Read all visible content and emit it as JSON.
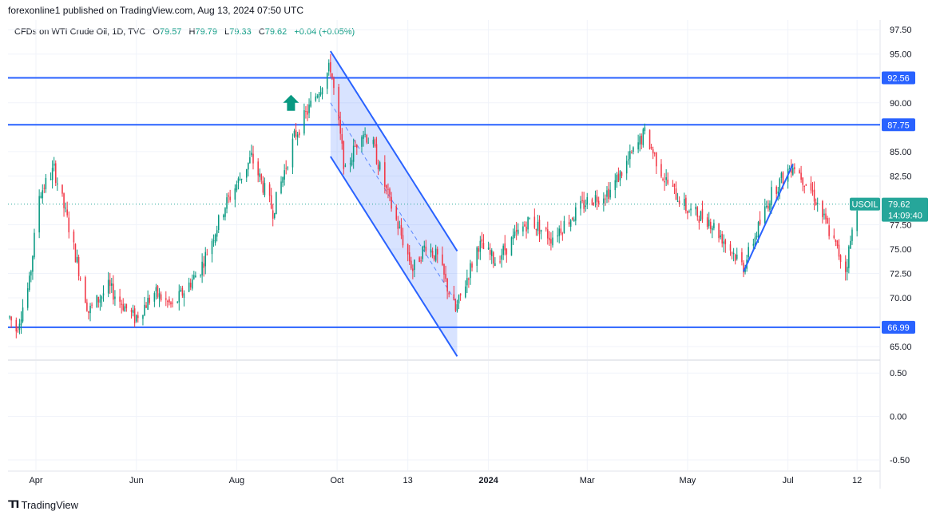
{
  "header": {
    "publisher": "forexonline1 published on TradingView.com, Aug 13, 2024 07:50 UTC",
    "symbol_title": "CFDs on WTI Crude Oil, 1D, TVC",
    "ohlc": [
      {
        "key": "O",
        "value": "79.57"
      },
      {
        "key": "H",
        "value": "79.79"
      },
      {
        "key": "L",
        "value": "79.33"
      },
      {
        "key": "C",
        "value": "79.62"
      }
    ],
    "change": "+0.04 (+0.05%)"
  },
  "colors": {
    "up": "#089981",
    "down": "#f23645",
    "level_line": "#2962ff",
    "channel_fill": "#2962ff",
    "price_tag": "#26a69a",
    "arrow": "#089981"
  },
  "icons": {
    "arrow": "up-arrow-icon",
    "footer_logo": "tradingview-logo-icon"
  },
  "chart_data": {
    "type": "candlestick",
    "symbol": "USOIL",
    "interval": "1D",
    "y_axis": {
      "ticks": [
        "97.50",
        "95.00",
        "90.00",
        "85.00",
        "82.50",
        "77.50",
        "75.00",
        "72.50",
        "70.00",
        "65.00"
      ],
      "range": [
        63.7,
        98.5
      ]
    },
    "x_axis": {
      "labels": [
        {
          "text": "Apr",
          "date": "2023-04-01"
        },
        {
          "text": "Jun",
          "date": "2023-06-01"
        },
        {
          "text": "Aug",
          "date": "2023-08-01"
        },
        {
          "text": "Oct",
          "date": "2023-10-01"
        },
        {
          "text": "13",
          "date": "2023-11-13"
        },
        {
          "text": "2024",
          "date": "2024-01-01"
        },
        {
          "text": "Mar",
          "date": "2024-03-01"
        },
        {
          "text": "May",
          "date": "2024-05-01"
        },
        {
          "text": "Jul",
          "date": "2024-07-01"
        },
        {
          "text": "12",
          "date": "2024-08-12"
        }
      ],
      "range": [
        "2023-03-15",
        "2024-08-26"
      ]
    },
    "price_path": [
      [
        "2023-03-16",
        68.0
      ],
      [
        "2023-03-20",
        66.7
      ],
      [
        "2023-03-28",
        71.5
      ],
      [
        "2023-04-03",
        80.6
      ],
      [
        "2023-04-12",
        83.2
      ],
      [
        "2023-04-20",
        78.0
      ],
      [
        "2023-05-03",
        68.6
      ],
      [
        "2023-05-15",
        71.1
      ],
      [
        "2023-05-31",
        67.9
      ],
      [
        "2023-06-12",
        70.5
      ],
      [
        "2023-06-23",
        69.1
      ],
      [
        "2023-07-10",
        73.0
      ],
      [
        "2023-07-25",
        79.5
      ],
      [
        "2023-08-10",
        84.4
      ],
      [
        "2023-08-23",
        78.9
      ],
      [
        "2023-09-05",
        86.5
      ],
      [
        "2023-09-27",
        93.7
      ],
      [
        "2023-10-06",
        82.8
      ],
      [
        "2023-10-16",
        87.3
      ],
      [
        "2023-10-23",
        85.5
      ],
      [
        "2023-11-01",
        80.4
      ],
      [
        "2023-11-16",
        72.9
      ],
      [
        "2023-11-24",
        75.5
      ],
      [
        "2023-12-01",
        74.1
      ],
      [
        "2023-12-12",
        68.6
      ],
      [
        "2023-12-26",
        75.5
      ],
      [
        "2024-01-05",
        73.8
      ],
      [
        "2024-01-26",
        78.0
      ],
      [
        "2024-02-08",
        76.2
      ],
      [
        "2024-03-01",
        79.9
      ],
      [
        "2024-03-15",
        81.0
      ],
      [
        "2024-04-05",
        86.9
      ],
      [
        "2024-04-17",
        82.2
      ],
      [
        "2024-05-01",
        79.0
      ],
      [
        "2024-05-14",
        78.0
      ],
      [
        "2024-06-04",
        73.2
      ],
      [
        "2024-06-21",
        80.7
      ],
      [
        "2024-07-04",
        83.8
      ],
      [
        "2024-07-16",
        80.8
      ],
      [
        "2024-08-05",
        72.9
      ],
      [
        "2024-08-12",
        79.6
      ]
    ],
    "annotations": {
      "horizontal_levels": [
        {
          "label": "92.56",
          "value": 92.56
        },
        {
          "label": "87.75",
          "value": 87.75
        },
        {
          "label": "66.99",
          "value": 66.99
        }
      ],
      "current_price": {
        "symbol": "USOIL",
        "value": 79.62,
        "label": "79.62",
        "countdown": "14:09:40"
      },
      "down_channel": {
        "upper": [
          [
            "2023-09-27",
            95.3
          ],
          [
            "2023-12-13",
            74.8
          ]
        ],
        "lower": [
          [
            "2023-09-27",
            84.5
          ],
          [
            "2023-12-13",
            64.0
          ]
        ],
        "mid": [
          [
            "2023-09-27",
            90.0
          ],
          [
            "2023-12-13",
            69.4
          ]
        ]
      },
      "up_trendline": [
        [
          "2024-06-04",
          72.7
        ],
        [
          "2024-07-04",
          83.7
        ]
      ],
      "arrow": {
        "direction": "up",
        "date": "2023-09-03",
        "value": 90.0
      }
    },
    "oscillator": {
      "ticks": [
        "0.50",
        "0.00",
        "-0.50"
      ],
      "range": [
        -0.62,
        0.64
      ]
    }
  },
  "footer": {
    "brand": "TradingView"
  }
}
